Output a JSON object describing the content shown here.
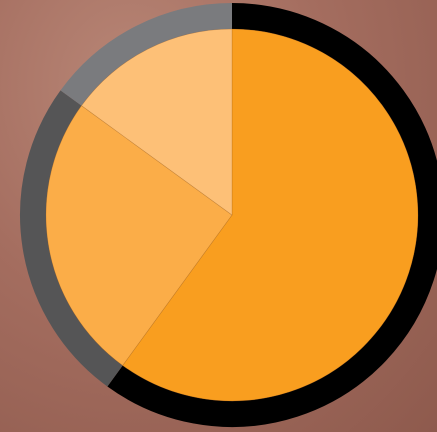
{
  "chart_data": {
    "type": "pie",
    "values": [
      60,
      25,
      15
    ],
    "colors": [
      "#f99e1f",
      "#fbad48",
      "#fdc077"
    ],
    "ring_colors": [
      "#000000",
      "#555556",
      "#7a7b7e"
    ],
    "start_angle": 0,
    "direction": "clockwise"
  }
}
